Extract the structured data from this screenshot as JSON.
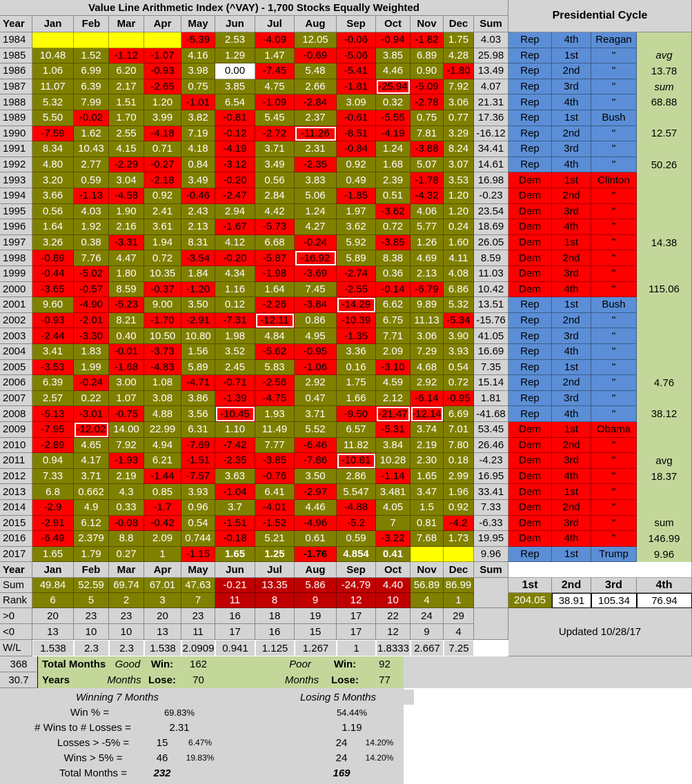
{
  "title": "Value Line Arithmetic Index (^VAY) - 1,700 Stocks Equally Weighted",
  "pres_title": "Presidential Cycle",
  "headers": [
    "Year",
    "Jan",
    "Feb",
    "Mar",
    "Apr",
    "May",
    "Jun",
    "Jul",
    "Aug",
    "Sep",
    "Oct",
    "Nov",
    "Dec",
    "Sum"
  ],
  "rows": [
    {
      "year": "1984",
      "m": [
        "",
        "",
        "",
        "",
        "-5.39",
        "2.53",
        "-4.09",
        "12.05",
        "-0.06",
        "-0.94",
        "-1.82",
        "1.75"
      ],
      "sum": "4.03"
    },
    {
      "year": "1985",
      "m": [
        "10.48",
        "1.52",
        "-1.12",
        "-1.07",
        "4.16",
        "1.29",
        "1.47",
        "-0.69",
        "-5.06",
        "3.85",
        "6.89",
        "4.28"
      ],
      "sum": "25.98"
    },
    {
      "year": "1986",
      "m": [
        "1.06",
        "6.99",
        "6.20",
        "-0.93",
        "3.98",
        "0.00",
        "-7.45",
        "5.48",
        "-5.41",
        "4.46",
        "0.90",
        "-1.80"
      ],
      "sum": "13.49"
    },
    {
      "year": "1987",
      "m": [
        "11.07",
        "6.39",
        "2.17",
        "-2.65",
        "0.75",
        "3.85",
        "4.75",
        "2.66",
        "-1.81",
        "-25.94",
        "-5.09",
        "7.92"
      ],
      "sum": "4.07"
    },
    {
      "year": "1988",
      "m": [
        "5.32",
        "7.99",
        "1.51",
        "1.20",
        "-1.01",
        "6.54",
        "-1.09",
        "-2.84",
        "3.09",
        "0.32",
        "-2.78",
        "3.06"
      ],
      "sum": "21.31"
    },
    {
      "year": "1989",
      "m": [
        "5.50",
        "-0.02",
        "1.70",
        "3.99",
        "3.82",
        "-0.81",
        "5.45",
        "2.37",
        "-0.61",
        "-5.55",
        "0.75",
        "0.77"
      ],
      "sum": "17.36"
    },
    {
      "year": "1990",
      "m": [
        "-7.59",
        "1.62",
        "2.55",
        "-4.18",
        "7.19",
        "-0.12",
        "-2.72",
        "-11.26",
        "-8.51",
        "-4.19",
        "7.81",
        "3.29"
      ],
      "sum": "-16.12"
    },
    {
      "year": "1991",
      "m": [
        "8.34",
        "10.43",
        "4.15",
        "0.71",
        "4.18",
        "-4.19",
        "3.71",
        "2.31",
        "-0.84",
        "1.24",
        "-3.88",
        "8.24"
      ],
      "sum": "34.41"
    },
    {
      "year": "1992",
      "m": [
        "4.80",
        "2.77",
        "-2.29",
        "-0.27",
        "0.84",
        "-3.12",
        "3.49",
        "-2.35",
        "0.92",
        "1.68",
        "5.07",
        "3.07"
      ],
      "sum": "14.61"
    },
    {
      "year": "1993",
      "m": [
        "3.20",
        "0.59",
        "3.04",
        "-2.18",
        "3.49",
        "-0.20",
        "0.56",
        "3.83",
        "0.49",
        "2.39",
        "-1.78",
        "3.53"
      ],
      "sum": "16.98"
    },
    {
      "year": "1994",
      "m": [
        "3.66",
        "-1.13",
        "-4.58",
        "0.92",
        "-0.46",
        "-2.47",
        "2.84",
        "5.06",
        "-1.85",
        "0.51",
        "-4.32",
        "1.20"
      ],
      "sum": "-0.23"
    },
    {
      "year": "1995",
      "m": [
        "0.56",
        "4.03",
        "1.90",
        "2.41",
        "2.43",
        "2.94",
        "4.42",
        "1.24",
        "1.97",
        "-3.62",
        "4.06",
        "1.20"
      ],
      "sum": "23.54"
    },
    {
      "year": "1996",
      "m": [
        "1.64",
        "1.92",
        "2.16",
        "3.61",
        "2.13",
        "-1.67",
        "-5.73",
        "4.27",
        "3.62",
        "0.72",
        "5.77",
        "0.24"
      ],
      "sum": "18.69"
    },
    {
      "year": "1997",
      "m": [
        "3.26",
        "0.38",
        "-3.31",
        "1.94",
        "8.31",
        "4.12",
        "6.68",
        "-0.24",
        "5.92",
        "-3.85",
        "1.26",
        "1.60"
      ],
      "sum": "26.05"
    },
    {
      "year": "1998",
      "m": [
        "-0.89",
        "7.76",
        "4.47",
        "0.72",
        "-3.54",
        "-0.20",
        "-5.87",
        "-16.92",
        "5.89",
        "8.38",
        "4.69",
        "4.11"
      ],
      "sum": "8.59"
    },
    {
      "year": "1999",
      "m": [
        "-0.44",
        "-5.02",
        "1.80",
        "10.35",
        "1.84",
        "4.34",
        "-1.98",
        "-3.69",
        "-2.74",
        "0.36",
        "2.13",
        "4.08"
      ],
      "sum": "11.03"
    },
    {
      "year": "2000",
      "m": [
        "-3.65",
        "-0.57",
        "8.59",
        "-0.37",
        "-1.20",
        "1.16",
        "1.64",
        "7.45",
        "-2.55",
        "-0.14",
        "-6.79",
        "6.86"
      ],
      "sum": "10.42"
    },
    {
      "year": "2001",
      "m": [
        "9.60",
        "-4.90",
        "-5.23",
        "9.00",
        "3.50",
        "0.12",
        "-2.26",
        "-3.84",
        "-14.29",
        "6.62",
        "9.89",
        "5.32"
      ],
      "sum": "13.51"
    },
    {
      "year": "2002",
      "m": [
        "-0.93",
        "-2.01",
        "8.21",
        "-1.70",
        "-2.91",
        "-7.31",
        "-12.11",
        "0.86",
        "-10.39",
        "6.75",
        "11.13",
        "-5.34"
      ],
      "sum": "-15.76"
    },
    {
      "year": "2003",
      "m": [
        "-2.44",
        "-3.30",
        "0.40",
        "10.50",
        "10.80",
        "1.98",
        "4.84",
        "4.95",
        "-1.35",
        "7.71",
        "3.06",
        "3.90"
      ],
      "sum": "41.05"
    },
    {
      "year": "2004",
      "m": [
        "3.41",
        "1.83",
        "-0.01",
        "-3.73",
        "1.56",
        "3.52",
        "-5.62",
        "-0.95",
        "3.36",
        "2.09",
        "7.29",
        "3.93"
      ],
      "sum": "16.69"
    },
    {
      "year": "2005",
      "m": [
        "-3.53",
        "1.99",
        "-1.68",
        "-4.83",
        "5.89",
        "2.45",
        "5.83",
        "-1.06",
        "0.16",
        "-3.10",
        "4.68",
        "0.54"
      ],
      "sum": "7.35"
    },
    {
      "year": "2006",
      "m": [
        "6.39",
        "-0.24",
        "3.00",
        "1.08",
        "-4.71",
        "-0.71",
        "-2.56",
        "2.92",
        "1.75",
        "4.59",
        "2.92",
        "0.72"
      ],
      "sum": "15.14"
    },
    {
      "year": "2007",
      "m": [
        "2.57",
        "0.22",
        "1.07",
        "3.08",
        "3.86",
        "-1.39",
        "-4.75",
        "0.47",
        "1.66",
        "2.12",
        "-6.14",
        "-0.95"
      ],
      "sum": "1.81"
    },
    {
      "year": "2008",
      "m": [
        "-5.13",
        "-3.01",
        "-0.75",
        "4.88",
        "3.56",
        "-10.45",
        "1.93",
        "3.71",
        "-9.50",
        "-21.47",
        "-12.14",
        "6.69"
      ],
      "sum": "-41.68"
    },
    {
      "year": "2009",
      "m": [
        "-7.95",
        "-12.02",
        "14.00",
        "22.99",
        "6.31",
        "1.10",
        "11.49",
        "5.52",
        "6.57",
        "-5.31",
        "3.74",
        "7.01"
      ],
      "sum": "53.45"
    },
    {
      "year": "2010",
      "m": [
        "-2.89",
        "4.65",
        "7.92",
        "4.94",
        "-7.69",
        "-7.42",
        "7.77",
        "-6.46",
        "11.82",
        "3.84",
        "2.19",
        "7.80"
      ],
      "sum": "26.46"
    },
    {
      "year": "2011",
      "m": [
        "0.94",
        "4.17",
        "-1.93",
        "6.21",
        "-1.51",
        "-2.35",
        "-3.85",
        "-7.86",
        "-10.81",
        "10.28",
        "2.30",
        "0.18"
      ],
      "sum": "-4.23"
    },
    {
      "year": "2012",
      "m": [
        "7.33",
        "3.71",
        "2.19",
        "-1.44",
        "-7.57",
        "3.63",
        "-0.76",
        "3.50",
        "2.86",
        "-1.14",
        "1.65",
        "2.99"
      ],
      "sum": "16.95"
    },
    {
      "year": "2013",
      "m": [
        "6.8",
        "0.662",
        "4.3",
        "0.85",
        "3.93",
        "-1.04",
        "6.41",
        "-2.97",
        "5.547",
        "3.481",
        "3.47",
        "1.96"
      ],
      "sum": "33.41"
    },
    {
      "year": "2014",
      "m": [
        "-2.9",
        "4.9",
        "0.33",
        "-1.7",
        "0.96",
        "3.7",
        "-4.01",
        "4.46",
        "-4.88",
        "4.05",
        "1.5",
        "0.92"
      ],
      "sum": "7.33"
    },
    {
      "year": "2015",
      "m": [
        "-2.91",
        "6.12",
        "-0.08",
        "-0.42",
        "0.54",
        "-1.51",
        "-1.52",
        "-4.96",
        "-5.2",
        "7",
        "0.81",
        "-4.2"
      ],
      "sum": "-6.33"
    },
    {
      "year": "2016",
      "m": [
        "-6.49",
        "2.379",
        "8.8",
        "2.09",
        "0.744",
        "-0.18",
        "5.21",
        "0.61",
        "0.59",
        "-3.22",
        "7.68",
        "1.73"
      ],
      "sum": "19.95"
    },
    {
      "year": "2017",
      "m": [
        "1.65",
        "1.79",
        "0.27",
        "1",
        "-1.15",
        "1.65",
        "1.25",
        "-1.76",
        "4.854",
        "0.41",
        "",
        ""
      ],
      "sum": "9.96"
    }
  ],
  "pres_rows": [
    {
      "party": "Rep",
      "term": "4th",
      "name": "Reagan"
    },
    {
      "party": "Rep",
      "term": "1st",
      "name": "\""
    },
    {
      "party": "Rep",
      "term": "2nd",
      "name": "\""
    },
    {
      "party": "Rep",
      "term": "3rd",
      "name": "\""
    },
    {
      "party": "Rep",
      "term": "4th",
      "name": "\""
    },
    {
      "party": "Rep",
      "term": "1st",
      "name": "Bush"
    },
    {
      "party": "Rep",
      "term": "2nd",
      "name": "\""
    },
    {
      "party": "Rep",
      "term": "3rd",
      "name": "\""
    },
    {
      "party": "Rep",
      "term": "4th",
      "name": "\""
    },
    {
      "party": "Dem",
      "term": "1st",
      "name": "Clinton"
    },
    {
      "party": "Dem",
      "term": "2nd",
      "name": "\""
    },
    {
      "party": "Dem",
      "term": "3rd",
      "name": "\""
    },
    {
      "party": "Dem",
      "term": "4th",
      "name": "\""
    },
    {
      "party": "Dem",
      "term": "1st",
      "name": "\""
    },
    {
      "party": "Dem",
      "term": "2nd",
      "name": "\""
    },
    {
      "party": "Dem",
      "term": "3rd",
      "name": "\""
    },
    {
      "party": "Dem",
      "term": "4th",
      "name": "\""
    },
    {
      "party": "Rep",
      "term": "1st",
      "name": "Bush"
    },
    {
      "party": "Rep",
      "term": "2nd",
      "name": "\""
    },
    {
      "party": "Rep",
      "term": "3rd",
      "name": "\""
    },
    {
      "party": "Rep",
      "term": "4th",
      "name": "\""
    },
    {
      "party": "Rep",
      "term": "1st",
      "name": "\""
    },
    {
      "party": "Rep",
      "term": "2nd",
      "name": "\""
    },
    {
      "party": "Rep",
      "term": "3rd",
      "name": "\""
    },
    {
      "party": "Rep",
      "term": "4th",
      "name": "\""
    },
    {
      "party": "Dem",
      "term": "1st",
      "name": "Obama"
    },
    {
      "party": "Dem",
      "term": "2nd",
      "name": "\""
    },
    {
      "party": "Dem",
      "term": "3rd",
      "name": "\""
    },
    {
      "party": "Dem",
      "term": "4th",
      "name": "\""
    },
    {
      "party": "Dem",
      "term": "1st",
      "name": "\""
    },
    {
      "party": "Dem",
      "term": "2nd",
      "name": "\""
    },
    {
      "party": "Dem",
      "term": "3rd",
      "name": "\""
    },
    {
      "party": "Dem",
      "term": "4th",
      "name": "\""
    },
    {
      "party": "Rep",
      "term": "1st",
      "name": "Trump"
    }
  ],
  "pres_side": [
    {
      "row": 1,
      "text": "avg",
      "italic": true
    },
    {
      "row": 2,
      "text": "13.78"
    },
    {
      "row": 3,
      "text": "sum",
      "italic": true
    },
    {
      "row": 4,
      "text": "68.88"
    },
    {
      "row": 6,
      "text": "12.57"
    },
    {
      "row": 8,
      "text": "50.26"
    },
    {
      "row": 13,
      "text": "14.38"
    },
    {
      "row": 16,
      "text": "115.06"
    },
    {
      "row": 22,
      "text": "4.76"
    },
    {
      "row": 24,
      "text": "38.12"
    },
    {
      "row": 27,
      "text": "avg"
    },
    {
      "row": 28,
      "text": "18.37"
    },
    {
      "row": 31,
      "text": "sum"
    },
    {
      "row": 32,
      "text": "146.99"
    },
    {
      "row": 33,
      "text": "9.96"
    }
  ],
  "footer_headers": [
    "Year",
    "Jan",
    "Feb",
    "Mar",
    "Apr",
    "May",
    "Jun",
    "Jul",
    "Aug",
    "Sep",
    "Oct",
    "Nov",
    "Dec",
    "Sum"
  ],
  "sum_label": "Sum",
  "sum_row": [
    "49.84",
    "52.59",
    "69.74",
    "67.01",
    "47.63",
    "-0.21",
    "13.35",
    "5.86",
    "-24.79",
    "4.40",
    "56.89",
    "86.99"
  ],
  "rank_label": "Rank",
  "rank_row": [
    "6",
    "5",
    "2",
    "3",
    "7",
    "11",
    "8",
    "9",
    "12",
    "10",
    "4",
    "1"
  ],
  "gt0_label": ">0",
  "gt0_row": [
    "20",
    "23",
    "23",
    "20",
    "23",
    "16",
    "18",
    "19",
    "17",
    "22",
    "24",
    "29"
  ],
  "lt0_label": "<0",
  "lt0_row": [
    "13",
    "10",
    "10",
    "13",
    "11",
    "17",
    "16",
    "15",
    "17",
    "12",
    "9",
    "4"
  ],
  "wl_label": "W/L",
  "wl_row": [
    "1.538",
    "2.3",
    "2.3",
    "1.538",
    "2.0909",
    "0.941",
    "1.125",
    "1.267",
    "1",
    "1.8333",
    "2.667",
    "7.25"
  ],
  "term_headers": [
    "1st",
    "2nd",
    "3rd",
    "4th"
  ],
  "term_values": [
    "204.05",
    "38.91",
    "105.34",
    "76.94"
  ],
  "updated": "Updated 10/28/17",
  "totals": {
    "n368": "368",
    "total_months": "Total Months",
    "good": "Good",
    "win_label": "Win:",
    "good_win": "162",
    "poor": "Poor",
    "poor_win": "92",
    "n307": "30.7",
    "years": "Years",
    "months": "Months",
    "lose_label": "Lose:",
    "good_lose": "70",
    "poor_lose": "77"
  },
  "stats": {
    "winning_head": "Winning 7 Months",
    "losing_head": "Losing 5 Months",
    "win_pct_label": "Win % =",
    "win_pct_w": "69.83%",
    "win_pct_l": "54.44%",
    "wins_losses_label": "# Wins to # Losses =",
    "wl_w": "2.31",
    "wl_l": "1.19",
    "losses5_label": "Losses > -5% =",
    "losses5_w": "15",
    "losses5_w_pct": "6.47%",
    "losses5_l": "24",
    "losses5_l_pct": "14.20%",
    "wins5_label": "Wins > 5% =",
    "wins5_w": "46",
    "wins5_w_pct": "19.83%",
    "wins5_l": "24",
    "wins5_l_pct": "14.20%",
    "total_label": "Total Months =",
    "total_w": "232",
    "total_l": "169"
  },
  "colors": {
    "olive": "#808000",
    "red": "#ff0000",
    "blue": "#5b8ed6",
    "lightgreen": "#c4d79b",
    "grey": "#d4d4d4",
    "darkred": "#c00000",
    "yellow": "#ffff00"
  }
}
